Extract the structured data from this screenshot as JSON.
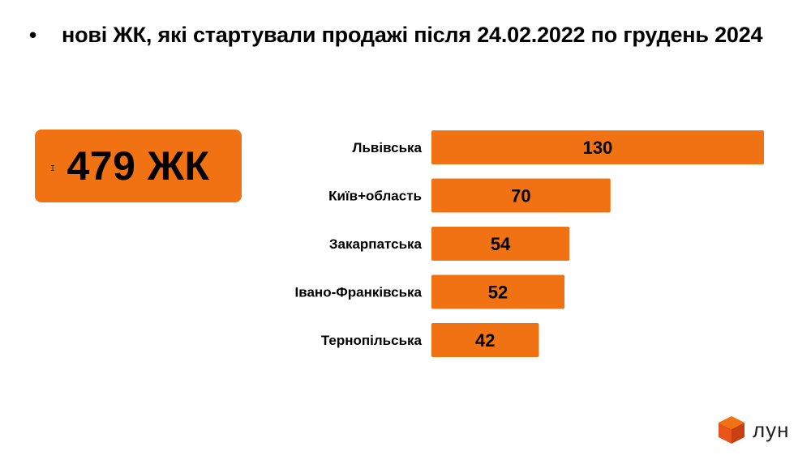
{
  "title": {
    "bullet": "•",
    "text": "нові ЖК, які стартували продажі після 24.02.2022 по грудень 2024"
  },
  "total": {
    "value": "479 ЖК"
  },
  "chart_data": {
    "type": "bar",
    "orientation": "horizontal",
    "categories": [
      "Львівська",
      "Київ+область",
      "Закарпатська",
      "Івано-Франківська",
      "Тернопільська"
    ],
    "values": [
      130,
      70,
      54,
      52,
      42
    ],
    "xlim": [
      0,
      130
    ],
    "bar_color": "#f07213",
    "grid": false
  },
  "logo": {
    "text": "лун",
    "colors": [
      "#f07213",
      "#e8541a",
      "#c93f12"
    ]
  }
}
